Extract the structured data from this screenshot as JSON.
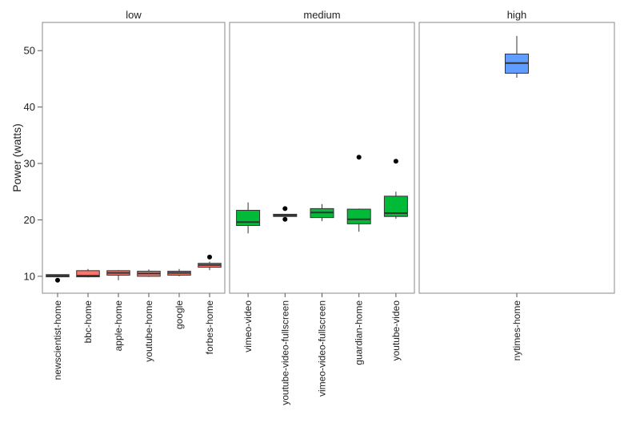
{
  "chart_data": {
    "type": "boxplot",
    "ylabel": "Power (watts)",
    "xlabel": "",
    "ylim": [
      7,
      55
    ],
    "yticks": [
      10,
      20,
      30,
      40,
      50
    ],
    "grid": false,
    "facets": [
      {
        "name": "low",
        "color": "#F8766D",
        "boxes": [
          {
            "label": "newscientist-home",
            "whisker_low": 9.9,
            "q1": 9.9,
            "median": 10.1,
            "q3": 10.3,
            "whisker_high": 10.3,
            "outliers": [
              9.3
            ]
          },
          {
            "label": "bbc-home",
            "whisker_low": 9.8,
            "q1": 9.9,
            "median": 10.1,
            "q3": 11.0,
            "whisker_high": 11.3,
            "outliers": []
          },
          {
            "label": "apple-home",
            "whisker_low": 9.3,
            "q1": 10.2,
            "median": 10.6,
            "q3": 11.0,
            "whisker_high": 11.1,
            "outliers": []
          },
          {
            "label": "youtube-home",
            "whisker_low": 9.9,
            "q1": 10.0,
            "median": 10.5,
            "q3": 10.9,
            "whisker_high": 11.2,
            "outliers": []
          },
          {
            "label": "google",
            "whisker_low": 10.0,
            "q1": 10.2,
            "median": 10.6,
            "q3": 10.9,
            "whisker_high": 11.3,
            "outliers": []
          },
          {
            "label": "forbes-home",
            "whisker_low": 11.1,
            "q1": 11.6,
            "median": 12.0,
            "q3": 12.3,
            "whisker_high": 12.6,
            "outliers": [
              13.4
            ]
          }
        ]
      },
      {
        "name": "medium",
        "color": "#00BA38",
        "boxes": [
          {
            "label": "vimeo-video",
            "whisker_low": 17.6,
            "q1": 19.0,
            "median": 19.6,
            "q3": 21.7,
            "whisker_high": 23.1,
            "outliers": []
          },
          {
            "label": "youtube-video-fullscreen",
            "whisker_low": 20.6,
            "q1": 20.6,
            "median": 20.8,
            "q3": 21.0,
            "whisker_high": 21.0,
            "outliers": [
              22.0,
              20.1
            ]
          },
          {
            "label": "vimeo-video-fullscreen",
            "whisker_low": 19.8,
            "q1": 20.4,
            "median": 21.3,
            "q3": 22.0,
            "whisker_high": 22.8,
            "outliers": []
          },
          {
            "label": "guardian-home",
            "whisker_low": 17.9,
            "q1": 19.3,
            "median": 20.1,
            "q3": 21.9,
            "whisker_high": 22.0,
            "outliers": [
              31.1
            ]
          },
          {
            "label": "youtube-video",
            "whisker_low": 20.2,
            "q1": 20.6,
            "median": 21.2,
            "q3": 24.2,
            "whisker_high": 25.0,
            "outliers": [
              30.4
            ]
          }
        ]
      },
      {
        "name": "high",
        "color": "#619CFF",
        "boxes": [
          {
            "label": "nytimes-home",
            "whisker_low": 45.2,
            "q1": 46.0,
            "median": 47.8,
            "q3": 49.4,
            "whisker_high": 52.6,
            "outliers": []
          }
        ]
      }
    ]
  }
}
